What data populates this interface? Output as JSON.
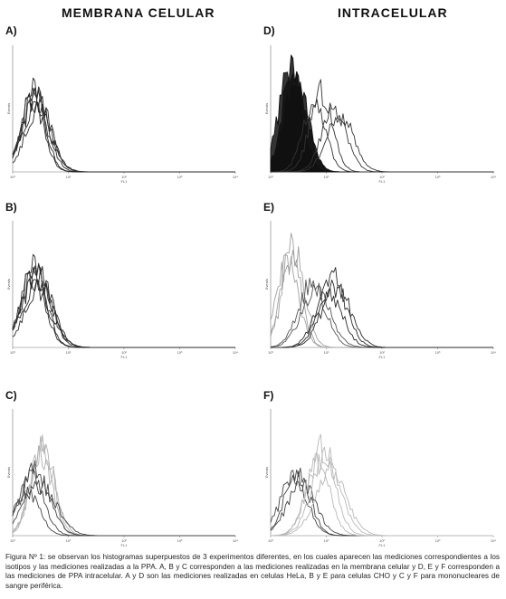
{
  "columns": {
    "left": "MEMBRANA CELULAR",
    "right": "INTRACELULAR"
  },
  "axis": {
    "xlabel": "FL1",
    "ylabel": "Events",
    "xticks": [
      "10⁰",
      "10¹",
      "10²",
      "10³",
      "10⁴"
    ]
  },
  "caption": "Figura Nº 1: se observan los histogramas superpuestos de 3 experimentos diferentes, en los cuales aparecen las mediciones correspondientes a los isotipos y las mediciones realizadas a la PPA. A, B y C corresponden a las mediciones realizadas en la membrana celular y D, E y F corresponden a las mediciones de PPA intracelular. A y D son las mediciones realizadas en celulas HeLa, B y E para celulas CHO y C y F para mononucleares de sangre periférica.",
  "chart_data": [
    {
      "label": "A)",
      "type": "area",
      "xscale": "log",
      "xlim": [
        1,
        10000
      ],
      "ylim": [
        0,
        100
      ],
      "series": [
        {
          "color": "#2a2a2a",
          "values": [
            {
              "x": 2.5,
              "y": 68,
              "w": 0.22
            },
            {
              "x": 2.4,
              "y": 64,
              "w": 0.2
            },
            {
              "x": 2.7,
              "y": 60,
              "w": 0.24
            },
            {
              "x": 2.3,
              "y": 56,
              "w": 0.2
            },
            {
              "x": 2.9,
              "y": 52,
              "w": 0.23
            },
            {
              "x": 2.6,
              "y": 48,
              "w": 0.26
            }
          ]
        }
      ]
    },
    {
      "label": "B)",
      "type": "area",
      "xscale": "log",
      "xlim": [
        1,
        10000
      ],
      "ylim": [
        0,
        100
      ],
      "series": [
        {
          "color": "#2a2a2a",
          "values": [
            {
              "x": 2.6,
              "y": 68,
              "w": 0.24
            },
            {
              "x": 2.4,
              "y": 62,
              "w": 0.22
            },
            {
              "x": 2.8,
              "y": 58,
              "w": 0.26
            },
            {
              "x": 2.3,
              "y": 54,
              "w": 0.22
            },
            {
              "x": 3.0,
              "y": 50,
              "w": 0.25
            },
            {
              "x": 2.7,
              "y": 46,
              "w": 0.27
            }
          ]
        }
      ]
    },
    {
      "label": "C)",
      "type": "area",
      "xscale": "log",
      "xlim": [
        1,
        10000
      ],
      "ylim": [
        0,
        100
      ],
      "series": [
        {
          "color": "#b0b0b0",
          "values": [
            {
              "x": 3.4,
              "y": 75,
              "w": 0.2
            },
            {
              "x": 3.5,
              "y": 68,
              "w": 0.22
            },
            {
              "x": 3.2,
              "y": 62,
              "w": 0.2
            }
          ]
        },
        {
          "color": "#444444",
          "values": [
            {
              "x": 2.5,
              "y": 52,
              "w": 0.26
            },
            {
              "x": 2.2,
              "y": 46,
              "w": 0.22
            },
            {
              "x": 3.0,
              "y": 40,
              "w": 0.3
            },
            {
              "x": 1.8,
              "y": 36,
              "w": 0.22
            }
          ]
        }
      ]
    },
    {
      "label": "D)",
      "type": "area",
      "xscale": "log",
      "xlim": [
        1,
        10000
      ],
      "ylim": [
        0,
        100
      ],
      "series": [
        {
          "color": "#111111",
          "filled": true,
          "values": [
            {
              "x": 2.5,
              "y": 85,
              "w": 0.18
            },
            {
              "x": 2.2,
              "y": 78,
              "w": 0.2
            },
            {
              "x": 3.0,
              "y": 70,
              "w": 0.2
            },
            {
              "x": 2.8,
              "y": 66,
              "w": 0.22
            }
          ]
        },
        {
          "color": "#333333",
          "values": [
            {
              "x": 8,
              "y": 62,
              "w": 0.2
            },
            {
              "x": 14,
              "y": 50,
              "w": 0.22
            },
            {
              "x": 18,
              "y": 44,
              "w": 0.24
            },
            {
              "x": 6,
              "y": 56,
              "w": 0.2
            }
          ]
        }
      ]
    },
    {
      "label": "E)",
      "type": "area",
      "xscale": "log",
      "xlim": [
        1,
        10000
      ],
      "ylim": [
        0,
        100
      ],
      "series": [
        {
          "color": "#a0a0a0",
          "values": [
            {
              "x": 2.3,
              "y": 82,
              "w": 0.18
            },
            {
              "x": 2.6,
              "y": 74,
              "w": 0.2
            },
            {
              "x": 2.0,
              "y": 66,
              "w": 0.2
            }
          ]
        },
        {
          "color": "#555555",
          "values": [
            {
              "x": 5.5,
              "y": 50,
              "w": 0.24
            },
            {
              "x": 6.5,
              "y": 44,
              "w": 0.26
            }
          ]
        },
        {
          "color": "#2a2a2a",
          "values": [
            {
              "x": 13,
              "y": 55,
              "w": 0.24
            },
            {
              "x": 15,
              "y": 48,
              "w": 0.26
            },
            {
              "x": 11,
              "y": 44,
              "w": 0.24
            }
          ]
        }
      ]
    },
    {
      "label": "F)",
      "type": "area",
      "xscale": "log",
      "xlim": [
        1,
        10000
      ],
      "ylim": [
        0,
        100
      ],
      "series": [
        {
          "color": "#444444",
          "values": [
            {
              "x": 3.0,
              "y": 52,
              "w": 0.22
            },
            {
              "x": 2.6,
              "y": 46,
              "w": 0.24
            },
            {
              "x": 3.6,
              "y": 40,
              "w": 0.26
            }
          ]
        },
        {
          "color": "#b8b8b8",
          "values": [
            {
              "x": 8,
              "y": 68,
              "w": 0.24
            },
            {
              "x": 10,
              "y": 62,
              "w": 0.26
            },
            {
              "x": 7,
              "y": 56,
              "w": 0.22
            },
            {
              "x": 12,
              "y": 50,
              "w": 0.28
            }
          ]
        }
      ]
    }
  ]
}
